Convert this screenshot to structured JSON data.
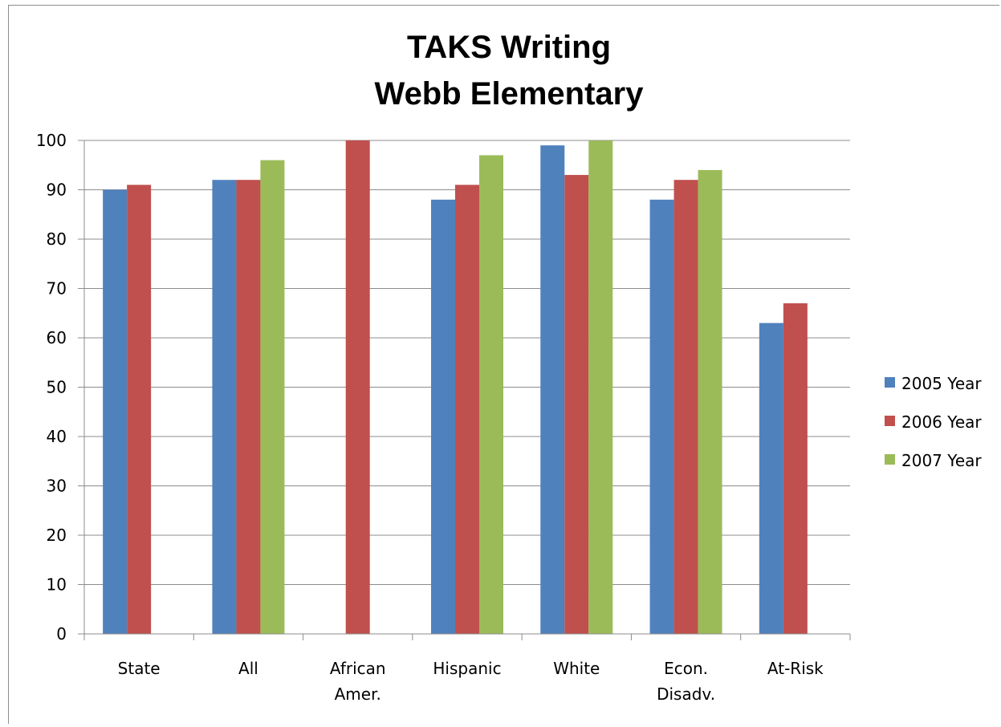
{
  "chart_data": {
    "type": "bar",
    "title": [
      "TAKS Writing",
      "Webb Elementary"
    ],
    "categories": [
      [
        "State"
      ],
      [
        "All"
      ],
      [
        "African",
        "Amer."
      ],
      [
        "Hispanic"
      ],
      [
        "White"
      ],
      [
        "Econ.",
        "Disadv."
      ],
      [
        "At-Risk"
      ]
    ],
    "series": [
      {
        "name": "2005 Year",
        "color": "#4f81bd",
        "values": [
          90,
          92,
          null,
          88,
          99,
          88,
          63
        ]
      },
      {
        "name": "2006 Year",
        "color": "#c0504d",
        "values": [
          91,
          92,
          100,
          91,
          93,
          92,
          67
        ]
      },
      {
        "name": "2007 Year",
        "color": "#9bbb59",
        "values": [
          null,
          96,
          null,
          97,
          100,
          94,
          null
        ]
      }
    ],
    "ylim": [
      0,
      100
    ],
    "yticks": [
      0,
      10,
      20,
      30,
      40,
      50,
      60,
      70,
      80,
      90,
      100
    ],
    "xlabel": "",
    "ylabel": "",
    "grid": true,
    "legend": "right"
  }
}
